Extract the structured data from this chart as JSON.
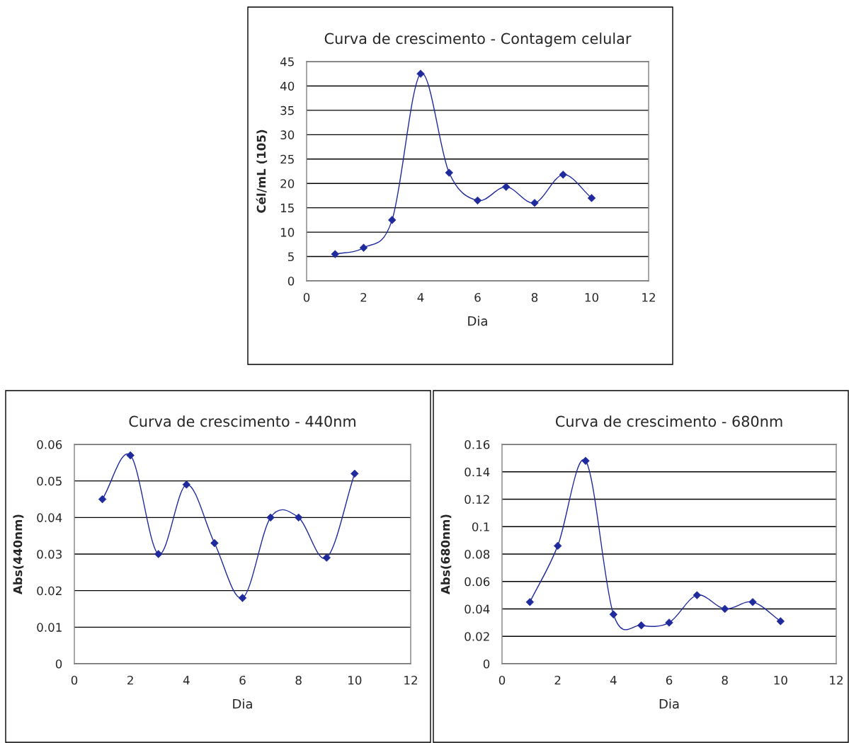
{
  "chart_data": [
    {
      "type": "line",
      "title": "Curva de crescimento - Contagem celular",
      "xlabel": "Dia",
      "ylabel": "Cél/mL (105)",
      "x": [
        1,
        2,
        3,
        4,
        5,
        6,
        7,
        8,
        9,
        10
      ],
      "series": [
        {
          "color": "#1f2a9c",
          "values": [
            5.5,
            6.8,
            12.5,
            42.5,
            22.2,
            16.5,
            19.3,
            16.0,
            21.8,
            17.0
          ]
        }
      ],
      "xlim": [
        0,
        12
      ],
      "xticks": [
        0,
        2,
        4,
        6,
        8,
        10,
        12
      ],
      "ylim": [
        0,
        45
      ],
      "yticks": [
        0,
        5,
        10,
        15,
        20,
        25,
        30,
        35,
        40,
        45
      ],
      "grid": "y",
      "marker": "diamond",
      "line_style": "solid"
    },
    {
      "type": "line",
      "title": "Curva de crescimento - 440nm",
      "xlabel": "Dia",
      "ylabel": "Abs(440nm)",
      "x": [
        1,
        2,
        3,
        4,
        5,
        6,
        7,
        8,
        9,
        10
      ],
      "series": [
        {
          "color": "#1f2a9c",
          "values": [
            0.045,
            0.057,
            0.03,
            0.049,
            0.033,
            0.018,
            0.04,
            0.04,
            0.029,
            0.052
          ]
        }
      ],
      "xlim": [
        0,
        12
      ],
      "xticks": [
        0,
        2,
        4,
        6,
        8,
        10,
        12
      ],
      "ylim": [
        0,
        0.06
      ],
      "yticks": [
        0,
        0.01,
        0.02,
        0.03,
        0.04,
        0.05,
        0.06
      ],
      "grid": "y",
      "marker": "diamond",
      "line_style": "solid"
    },
    {
      "type": "line",
      "title": "Curva de crescimento - 680nm",
      "xlabel": "Dia",
      "ylabel": "Abs(680nm)",
      "x": [
        1,
        2,
        3,
        4,
        5,
        6,
        7,
        8,
        9,
        10
      ],
      "series": [
        {
          "color": "#1f2a9c",
          "values": [
            0.045,
            0.086,
            0.148,
            0.036,
            0.028,
            0.03,
            0.05,
            0.04,
            0.045,
            0.031
          ]
        }
      ],
      "xlim": [
        0,
        12
      ],
      "xticks": [
        0,
        2,
        4,
        6,
        8,
        10,
        12
      ],
      "ylim": [
        0,
        0.16
      ],
      "yticks": [
        0,
        0.02,
        0.04,
        0.06,
        0.08,
        0.1,
        0.12,
        0.14,
        0.16
      ],
      "grid": "y",
      "marker": "diamond",
      "line_style": "solid"
    }
  ]
}
